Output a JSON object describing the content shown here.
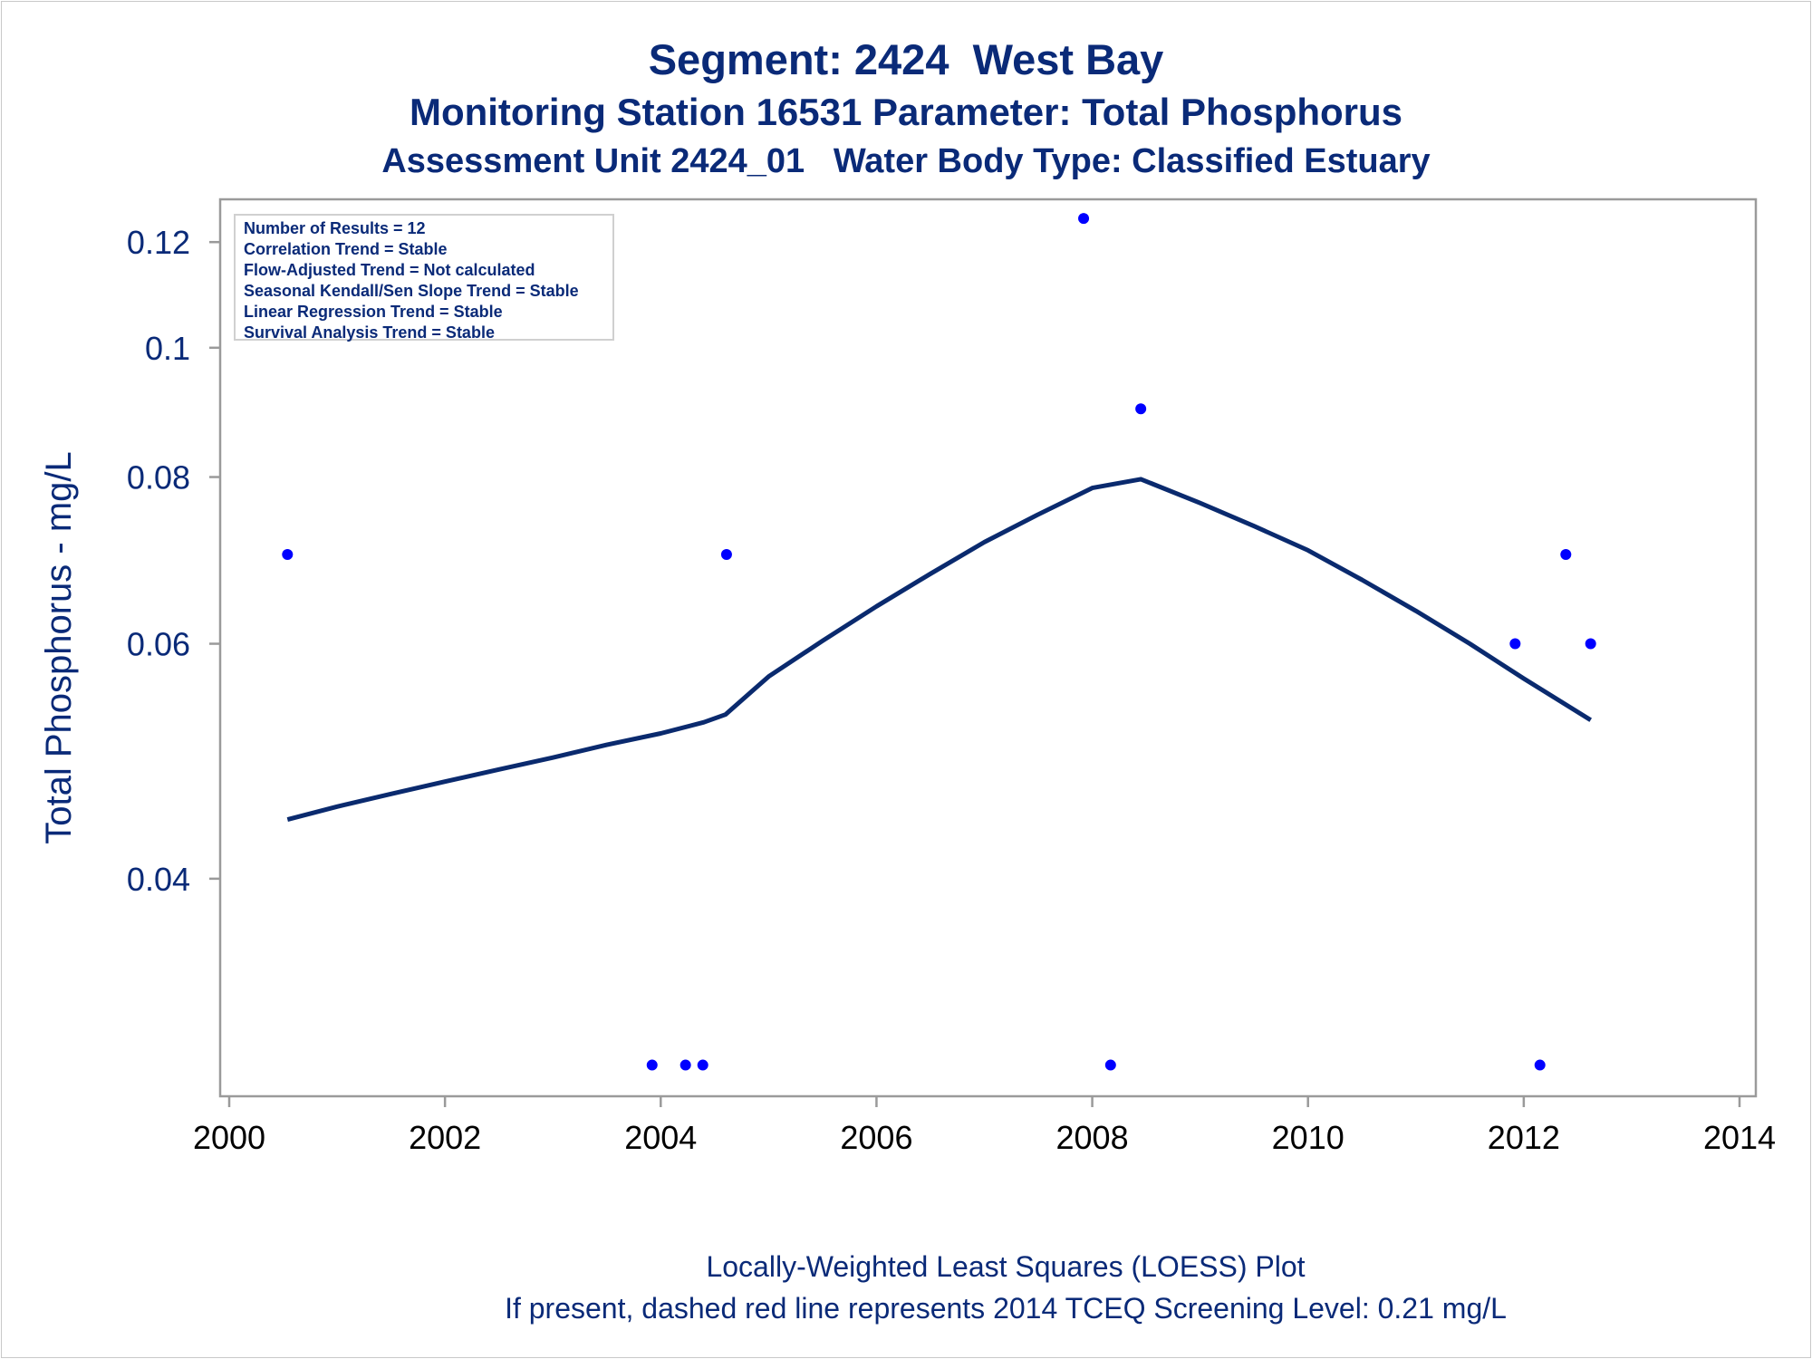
{
  "title": {
    "line1": "Segment: 2424  West Bay",
    "line2": "Monitoring Station 16531 Parameter: Total Phosphorus",
    "line3": "Assessment Unit 2424_01   Water Body Type: Classified Estuary"
  },
  "footnote": {
    "line1": "Locally-Weighted Least Squares (LOESS) Plot",
    "line2": "If present, dashed red line represents 2014 TCEQ Screening Level: 0.21 mg/L"
  },
  "stats": [
    "Number of Results = 12",
    "Correlation Trend = Stable",
    "Flow-Adjusted Trend = Not calculated",
    "Seasonal Kendall/Sen Slope Trend = Stable",
    "Linear Regression Trend = Stable",
    "Survival Analysis Trend = Stable"
  ],
  "colors": {
    "text": "#0a2a78",
    "points": "#0000ff",
    "loess": "#0a2a6e",
    "axis": "#9a9a9a"
  },
  "chart_data": {
    "type": "scatter",
    "ylabel": "Total Phosphorus - mg/L",
    "xlim": [
      2000,
      2014
    ],
    "ylim": [
      0.028,
      0.126
    ],
    "yscale": "log",
    "xticks": [
      {
        "value": 2000,
        "label": "2000"
      },
      {
        "value": 2002,
        "label": "2002"
      },
      {
        "value": 2004,
        "label": "2004"
      },
      {
        "value": 2006,
        "label": "2006"
      },
      {
        "value": 2008,
        "label": "2008"
      },
      {
        "value": 2010,
        "label": "2010"
      },
      {
        "value": 2012,
        "label": "2012"
      },
      {
        "value": 2014,
        "label": "2014"
      }
    ],
    "yticks": [
      {
        "value": 0.04,
        "label": "0.04"
      },
      {
        "value": 0.06,
        "label": "0.06"
      },
      {
        "value": 0.08,
        "label": "0.08"
      },
      {
        "value": 0.1,
        "label": "0.1"
      },
      {
        "value": 0.12,
        "label": "0.12"
      }
    ],
    "points": [
      {
        "x": 2000.54,
        "y": 0.07
      },
      {
        "x": 2003.92,
        "y": 0.029
      },
      {
        "x": 2004.23,
        "y": 0.029
      },
      {
        "x": 2004.39,
        "y": 0.029
      },
      {
        "x": 2004.61,
        "y": 0.07
      },
      {
        "x": 2007.92,
        "y": 0.125
      },
      {
        "x": 2008.17,
        "y": 0.029
      },
      {
        "x": 2008.45,
        "y": 0.09
      },
      {
        "x": 2011.92,
        "y": 0.06
      },
      {
        "x": 2012.15,
        "y": 0.029
      },
      {
        "x": 2012.39,
        "y": 0.07
      },
      {
        "x": 2012.62,
        "y": 0.06
      }
    ],
    "loess": [
      {
        "x": 2000.54,
        "y": 0.0443
      },
      {
        "x": 2001.0,
        "y": 0.0453
      },
      {
        "x": 2001.5,
        "y": 0.0463
      },
      {
        "x": 2002.0,
        "y": 0.0473
      },
      {
        "x": 2002.5,
        "y": 0.0483
      },
      {
        "x": 2003.0,
        "y": 0.0493
      },
      {
        "x": 2003.5,
        "y": 0.0504
      },
      {
        "x": 2004.0,
        "y": 0.0514
      },
      {
        "x": 2004.4,
        "y": 0.0524
      },
      {
        "x": 2004.6,
        "y": 0.0531
      },
      {
        "x": 2005.0,
        "y": 0.0567
      },
      {
        "x": 2005.5,
        "y": 0.0603
      },
      {
        "x": 2006.0,
        "y": 0.064
      },
      {
        "x": 2006.5,
        "y": 0.0677
      },
      {
        "x": 2007.0,
        "y": 0.0715
      },
      {
        "x": 2007.5,
        "y": 0.075
      },
      {
        "x": 2008.0,
        "y": 0.0785
      },
      {
        "x": 2008.45,
        "y": 0.0797
      },
      {
        "x": 2009.0,
        "y": 0.0765
      },
      {
        "x": 2009.5,
        "y": 0.0735
      },
      {
        "x": 2010.0,
        "y": 0.0705
      },
      {
        "x": 2010.5,
        "y": 0.067
      },
      {
        "x": 2011.0,
        "y": 0.0635
      },
      {
        "x": 2011.5,
        "y": 0.06
      },
      {
        "x": 2012.0,
        "y": 0.0565
      },
      {
        "x": 2012.62,
        "y": 0.0526
      }
    ]
  }
}
